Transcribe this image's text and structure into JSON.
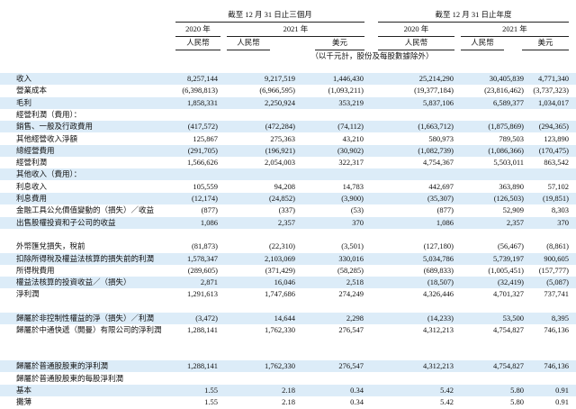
{
  "header": {
    "groups": [
      "截至 12 月 31 日止三個月",
      "截至 12 月 31 日止年度"
    ],
    "years": [
      "2020 年",
      "2021 年",
      "2020 年",
      "2021 年"
    ],
    "currencies": [
      "人民幣",
      "人民幣",
      "美元",
      "人民幣",
      "人民幣",
      "美元"
    ],
    "note": "（以千元計，股份及每股數據除外）"
  },
  "table": {
    "rows": [
      [
        "收入",
        "8,257,144",
        "9,217,519",
        "1,446,430",
        "25,214,290",
        "30,405,839",
        "4,771,340"
      ],
      [
        "營業成本",
        "(6,398,813)",
        "(6,966,595)",
        "(1,093,211)",
        "(19,377,184)",
        "(23,816,462)",
        "(3,737,323)"
      ],
      [
        "毛利",
        "1,858,331",
        "2,250,924",
        "353,219",
        "5,837,106",
        "6,589,377",
        "1,034,017"
      ],
      [
        "經營利潤（費用）："
      ],
      [
        "銷售、一般及行政費用",
        "(417,572)",
        "(472,284)",
        "(74,112)",
        "(1,663,712)",
        "(1,875,869)",
        "(294,365)"
      ],
      [
        "其他經營收入淨額",
        "125,867",
        "275,363",
        "43,210",
        "580,973",
        "789,503",
        "123,890"
      ],
      [
        "總經營費用",
        "(291,705)",
        "(196,921)",
        "(30,902)",
        "(1,082,739)",
        "(1,086,366)",
        "(170,475)"
      ],
      [
        "經營利潤",
        "1,566,626",
        "2,054,003",
        "322,317",
        "4,754,367",
        "5,503,011",
        "863,542"
      ],
      [
        "其他收入（費用）："
      ],
      [
        "利息收入",
        "105,559",
        "94,208",
        "14,783",
        "442,697",
        "363,890",
        "57,102"
      ],
      [
        "利息費用",
        "(12,174)",
        "(24,852)",
        "(3,900)",
        "(35,307)",
        "(126,503)",
        "(19,851)"
      ],
      [
        "金融工具公允價值變動的（損失）／收益",
        "(877)",
        "(337)",
        "(53)",
        "(877)",
        "52,909",
        "8,303"
      ],
      [
        "出售股權投資和子公司的收益",
        "1,086",
        "2,357",
        "370",
        "1,086",
        "2,357",
        "370"
      ],
      [
        "外幣匯兌損失，稅前",
        "(81,873)",
        "(22,310)",
        "(3,501)",
        "(127,180)",
        "(56,467)",
        "(8,861)"
      ],
      [
        "扣除所得稅及權益法核算的損失前的利潤",
        "1,578,347",
        "2,103,069",
        "330,016",
        "5,034,786",
        "5,739,197",
        "900,605"
      ],
      [
        "所得稅費用",
        "(289,605)",
        "(371,429)",
        "(58,285)",
        "(689,833)",
        "(1,005,451)",
        "(157,777)"
      ],
      [
        "權益法核算的投資收益／（損失）",
        "2,871",
        "16,046",
        "2,518",
        "(18,507)",
        "(32,419)",
        "(5,087)"
      ],
      [
        "淨利潤",
        "1,291,613",
        "1,747,686",
        "274,249",
        "4,326,446",
        "4,701,327",
        "737,741"
      ],
      [
        "歸屬於非控制性權益的淨（損失）／利潤",
        "(3,472)",
        "14,644",
        "2,298",
        "(14,233)",
        "53,500",
        "8,395"
      ],
      [
        "歸屬於中通快遞（開曼）有限公司的淨利潤",
        "1,288,141",
        "1,762,330",
        "276,547",
        "4,312,213",
        "4,754,827",
        "746,136"
      ],
      [
        "歸屬於普通股股東的淨利潤",
        "1,288,141",
        "1,762,330",
        "276,547",
        "4,312,213",
        "4,754,827",
        "746,136"
      ],
      [
        "歸屬於普通股股東的每股淨利潤"
      ],
      [
        "基本",
        "1.55",
        "2.18",
        "0.34",
        "5.42",
        "5.80",
        "0.91"
      ],
      [
        "攤薄",
        "1.55",
        "2.18",
        "0.34",
        "5.42",
        "5.80",
        "0.91"
      ]
    ]
  }
}
